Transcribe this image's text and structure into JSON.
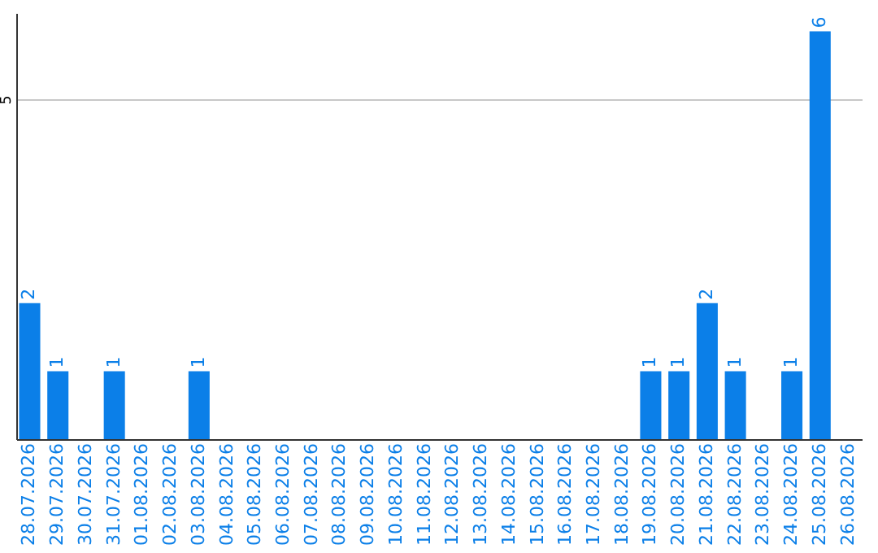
{
  "chart_data": {
    "type": "bar",
    "categories": [
      "28.07.2026",
      "29.07.2026",
      "30.07.2026",
      "31.07.2026",
      "01.08.2026",
      "02.08.2026",
      "03.08.2026",
      "04.08.2026",
      "05.08.2026",
      "06.08.2026",
      "07.08.2026",
      "08.08.2026",
      "09.08.2026",
      "10.08.2026",
      "11.08.2026",
      "12.08.2026",
      "13.08.2026",
      "14.08.2026",
      "15.08.2026",
      "16.08.2026",
      "17.08.2026",
      "18.08.2026",
      "19.08.2026",
      "20.08.2026",
      "21.08.2026",
      "22.08.2026",
      "23.08.2026",
      "24.08.2026",
      "25.08.2026",
      "26.08.2026"
    ],
    "values": [
      2,
      1,
      0,
      1,
      0,
      0,
      1,
      0,
      0,
      0,
      0,
      0,
      0,
      0,
      0,
      0,
      0,
      0,
      0,
      0,
      0,
      0,
      1,
      1,
      2,
      1,
      0,
      1,
      6,
      0
    ],
    "value_labels": [
      "2",
      "1",
      null,
      "1",
      null,
      null,
      "1",
      null,
      null,
      null,
      null,
      null,
      null,
      null,
      null,
      null,
      null,
      null,
      null,
      null,
      null,
      null,
      "1",
      "1",
      "2",
      "1",
      null,
      "1",
      "6",
      null
    ],
    "color": "#0b7fe8",
    "ylim": [
      0,
      6.27
    ],
    "yticks": [
      5
    ],
    "grid": "y"
  }
}
